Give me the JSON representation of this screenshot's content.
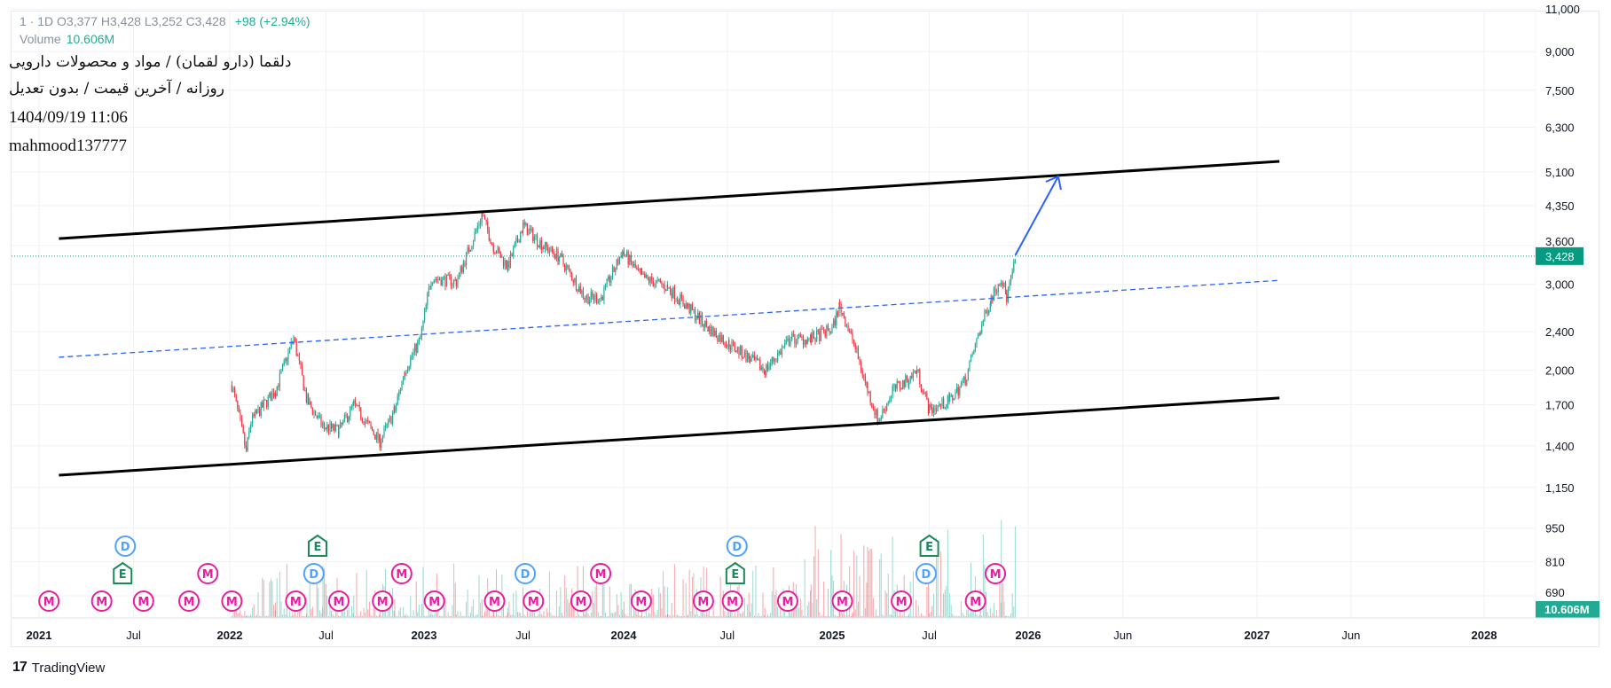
{
  "header": {
    "ohlc_text": "1 · 1D  O3,377  H3,428  L3,252  C3,428",
    "change": "+98 (+2.94%)",
    "volume_label": "Volume",
    "volume_value": "10.606M",
    "title_fa": "دلقما (دارو لقمان) / مواد و محصولات دارویی",
    "subtitle_fa": "روزانه / آخرین قیمت / بدون تعدیل",
    "datetime": "1404/09/19 11:06",
    "author": "mahmood137777"
  },
  "branding": {
    "logo_text": "TradingView"
  },
  "colors": {
    "up": "#22ab94",
    "down": "#f23645",
    "channel": "#000000",
    "midline": "#2962ff",
    "arrow": "#2962ff",
    "last_price_bg": "#089981",
    "dividend": "#4da3ff",
    "earnings": "#1b8a5a",
    "meeting": "#e91e9c"
  },
  "chart_data": {
    "type": "candlestick",
    "scale": "log",
    "grid": true,
    "ylim": [
      650,
      11500
    ],
    "y_ticks": [
      "11,000",
      "9,000",
      "7,500",
      "6,300",
      "5,100",
      "4,350",
      "3,600",
      "3,000",
      "2,400",
      "2,000",
      "1,700",
      "1,400",
      "1,150",
      "950",
      "810",
      "690"
    ],
    "x_ticks": [
      "2021",
      "Jul",
      "2022",
      "Jul",
      "2023",
      "Jul",
      "2024",
      "Jul",
      "2025",
      "Jul",
      "2026",
      "Jun",
      "2027",
      "Jun",
      "2028"
    ],
    "last_price": {
      "value": 3428,
      "label": "3,428"
    },
    "last_volume": {
      "label": "10.606M"
    },
    "price_path": [
      [
        "2022-01-05",
        1868
      ],
      [
        "2022-02-01",
        1365
      ],
      [
        "2022-02-10",
        1573
      ],
      [
        "2022-03-28",
        1821
      ],
      [
        "2022-05-01",
        2330
      ],
      [
        "2022-05-26",
        1731
      ],
      [
        "2022-06-25",
        1534
      ],
      [
        "2022-07-25",
        1505
      ],
      [
        "2022-08-22",
        1699
      ],
      [
        "2022-10-10",
        1429
      ],
      [
        "2022-11-07",
        1656
      ],
      [
        "2022-11-26",
        2003
      ],
      [
        "2022-12-25",
        2318
      ],
      [
        "2023-01-14",
        3097
      ],
      [
        "2023-03-01",
        3034
      ],
      [
        "2023-04-17",
        4160
      ],
      [
        "2023-05-08",
        3590
      ],
      [
        "2023-06-03",
        3260
      ],
      [
        "2023-07-01",
        3958
      ],
      [
        "2023-08-08",
        3590
      ],
      [
        "2023-09-05",
        3420
      ],
      [
        "2023-10-23",
        2817
      ],
      [
        "2023-11-21",
        2817
      ],
      [
        "2023-12-30",
        3500
      ],
      [
        "2024-02-02",
        3097
      ],
      [
        "2024-03-18",
        2960
      ],
      [
        "2024-04-23",
        2690
      ],
      [
        "2024-05-30",
        2430
      ],
      [
        "2024-07-04",
        2265
      ],
      [
        "2024-08-10",
        2110
      ],
      [
        "2024-09-05",
        2003
      ],
      [
        "2024-10-20",
        2318
      ],
      [
        "2024-11-25",
        2318
      ],
      [
        "2025-01-01",
        2430
      ],
      [
        "2025-01-15",
        2714
      ],
      [
        "2025-02-08",
        2318
      ],
      [
        "2025-03-08",
        1821
      ],
      [
        "2025-03-28",
        1573
      ],
      [
        "2025-04-24",
        1821
      ],
      [
        "2025-05-24",
        1918
      ],
      [
        "2025-06-08",
        2003
      ],
      [
        "2025-07-01",
        1656
      ],
      [
        "2025-08-08",
        1731
      ],
      [
        "2025-09-06",
        1918
      ],
      [
        "2025-10-04",
        2430
      ],
      [
        "2025-10-24",
        2817
      ],
      [
        "2025-11-12",
        3097
      ],
      [
        "2025-11-22",
        2817
      ],
      [
        "2025-12-10",
        3428
      ]
    ],
    "drawings": {
      "channel_upper": [
        [
          "2021-02-08",
          3724
        ],
        [
          "2027-02-06",
          5360
        ]
      ],
      "channel_lower": [
        [
          "2021-02-08",
          1219
        ],
        [
          "2027-02-06",
          1755
        ]
      ],
      "midline_dashed": [
        [
          "2021-02-08",
          2127
        ],
        [
          "2027-02-06",
          3058
        ]
      ],
      "arrow": [
        [
          "2025-12-08",
          3441
        ],
        [
          "2026-02-18",
          4993
        ]
      ]
    },
    "events": [
      {
        "label": "M",
        "date": "2021-01-20"
      },
      {
        "label": "M",
        "date": "2021-05-01"
      },
      {
        "label": "E",
        "date": "2021-06-10"
      },
      {
        "label": "D",
        "date": "2021-06-15"
      },
      {
        "label": "M",
        "date": "2021-07-20"
      },
      {
        "label": "M",
        "date": "2021-10-15"
      },
      {
        "label": "M",
        "date": "2021-11-20"
      },
      {
        "label": "M",
        "date": "2022-01-05"
      },
      {
        "label": "M",
        "date": "2022-05-05"
      },
      {
        "label": "D",
        "date": "2022-06-08"
      },
      {
        "label": "E",
        "date": "2022-06-15"
      },
      {
        "label": "M",
        "date": "2022-07-25"
      },
      {
        "label": "M",
        "date": "2022-10-15"
      },
      {
        "label": "M",
        "date": "2022-11-20"
      },
      {
        "label": "M",
        "date": "2023-01-20"
      },
      {
        "label": "M",
        "date": "2023-05-10"
      },
      {
        "label": "D",
        "date": "2023-07-05"
      },
      {
        "label": "M",
        "date": "2023-07-20"
      },
      {
        "label": "M",
        "date": "2023-10-15"
      },
      {
        "label": "M",
        "date": "2023-11-20"
      },
      {
        "label": "M",
        "date": "2024-02-01"
      },
      {
        "label": "M",
        "date": "2024-05-20"
      },
      {
        "label": "M",
        "date": "2024-07-10"
      },
      {
        "label": "E",
        "date": "2024-07-15"
      },
      {
        "label": "D",
        "date": "2024-07-18"
      },
      {
        "label": "M",
        "date": "2024-10-15"
      },
      {
        "label": "M",
        "date": "2025-01-20"
      },
      {
        "label": "M",
        "date": "2025-05-10"
      },
      {
        "label": "D",
        "date": "2025-06-25"
      },
      {
        "label": "E",
        "date": "2025-07-01"
      },
      {
        "label": "M",
        "date": "2025-09-25"
      },
      {
        "label": "M",
        "date": "2025-11-01"
      }
    ]
  }
}
